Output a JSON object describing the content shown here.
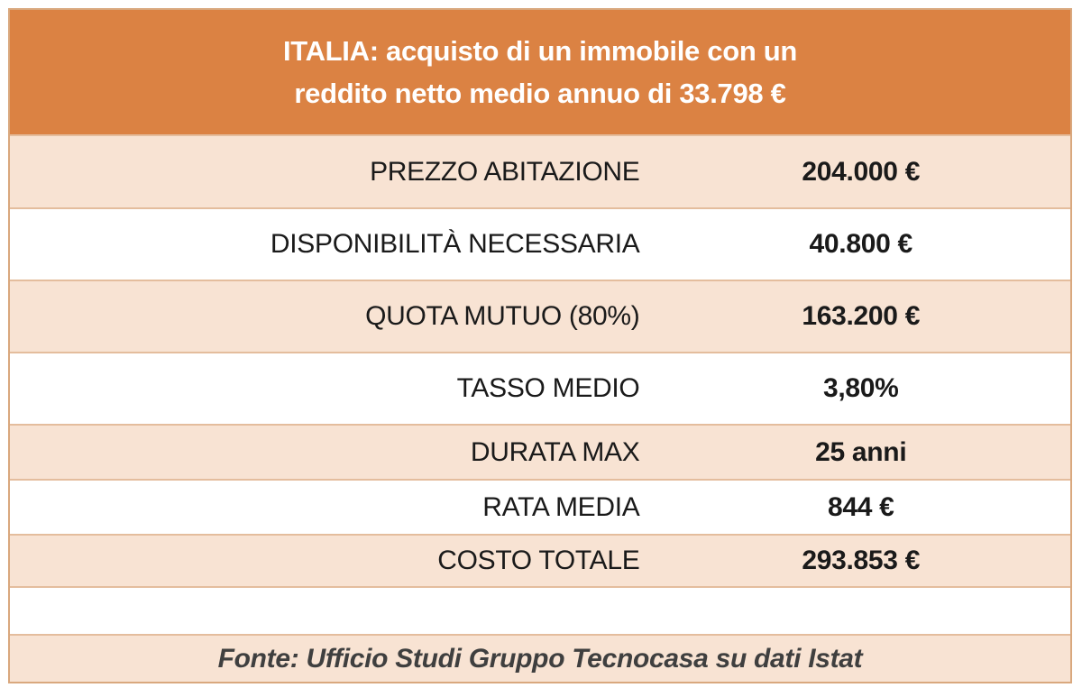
{
  "chart_data": {
    "type": "table",
    "title": "ITALIA: acquisto di un immobile con un reddito netto medio annuo di 33.798 €",
    "rows": [
      {
        "label": "PREZZO ABITAZIONE",
        "value": "204.000 €"
      },
      {
        "label": "DISPONIBILITÀ NECESSARIA",
        "value": "40.800 €"
      },
      {
        "label": "QUOTA MUTUO (80%)",
        "value": "163.200 €"
      },
      {
        "label": "TASSO MEDIO",
        "value": "3,80%"
      },
      {
        "label": "DURATA MAX",
        "value": "25 anni"
      },
      {
        "label": "RATA MEDIA",
        "value": "844 €"
      },
      {
        "label": "COSTO TOTALE",
        "value": "293.853 €"
      }
    ],
    "source": "Fonte: Ufficio Studi Gruppo Tecnocasa su dati Istat"
  },
  "header": {
    "title_line1": "ITALIA: acquisto di un immobile con un",
    "title_line2": "reddito netto medio annuo di 33.798 €"
  },
  "colors": {
    "header_bg": "#db8243",
    "banded_row_bg": "#f8e3d3",
    "plain_row_bg": "#ffffff",
    "grid_border": "#e4bd9d",
    "outer_border": "#d9a87e",
    "title_text": "#ffffff",
    "cell_text": "#1a1a1a",
    "source_text": "#3f3f3f"
  }
}
